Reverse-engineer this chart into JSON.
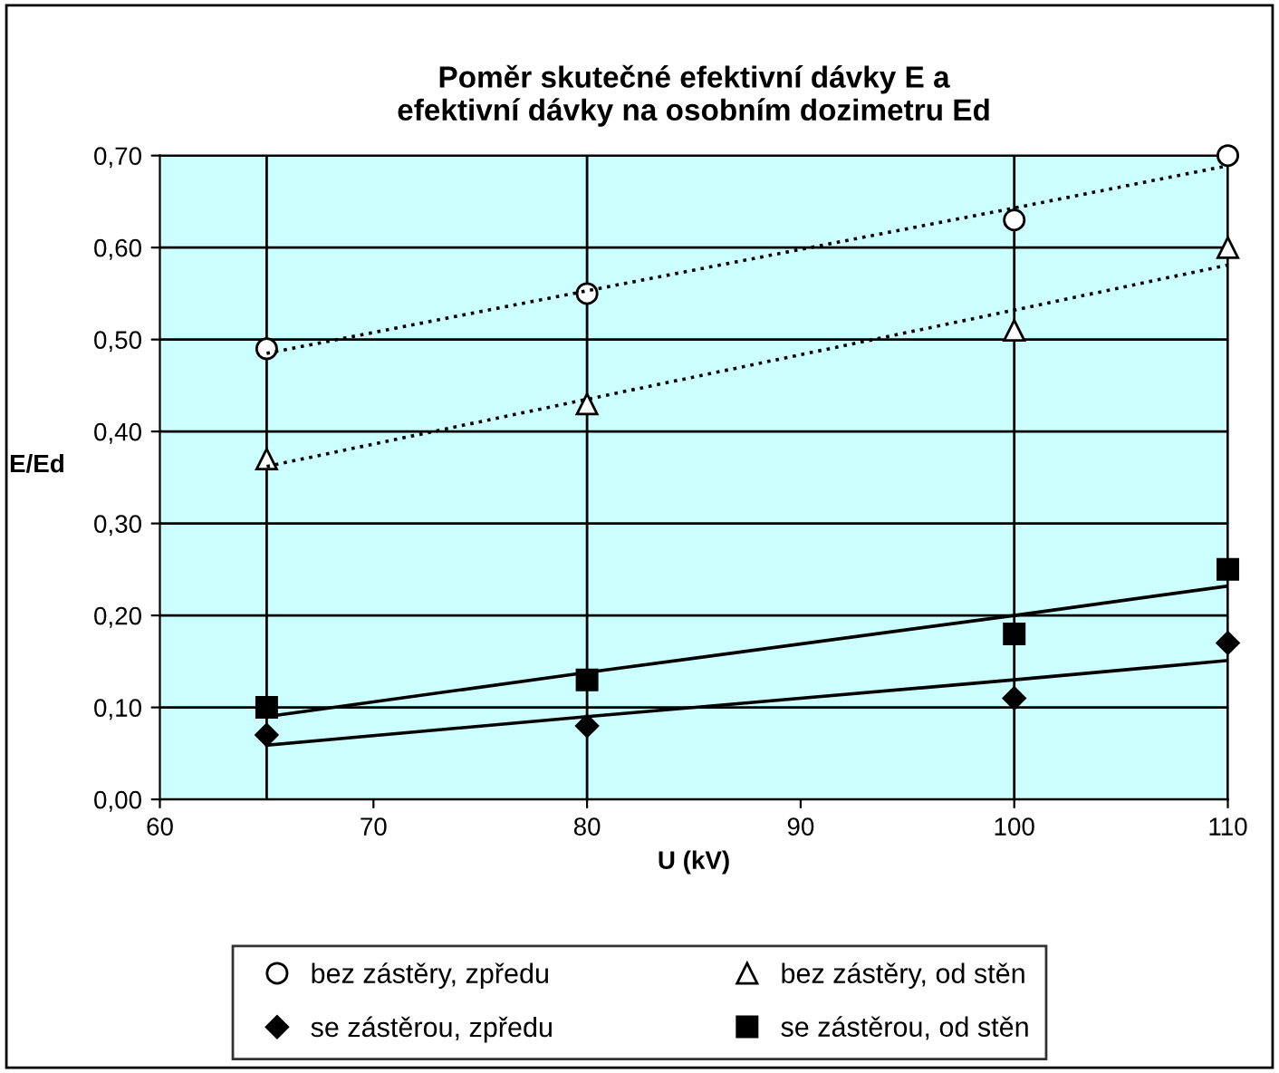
{
  "chart_data": {
    "type": "scatter",
    "title": "Poměr skutečné efektivní dávky E a\nefektivní dávky na osobním dozimetru Ed",
    "xlabel": "U (kV)",
    "ylabel": "E/Ed",
    "x": [
      65,
      80,
      100,
      110
    ],
    "series": [
      {
        "name": "bez zástěry, zpředu",
        "color": "#ffffff",
        "marker": "circle",
        "values": [
          0.49,
          0.55,
          0.63,
          0.7
        ]
      },
      {
        "name": "bez zástěry, od stěn",
        "color": "#ffffff",
        "marker": "triangle",
        "values": [
          0.37,
          0.43,
          0.51,
          0.6
        ]
      },
      {
        "name": "se zástěrou, zpředu",
        "color": "#000000",
        "marker": "diamond",
        "values": [
          0.07,
          0.08,
          0.11,
          0.17
        ]
      },
      {
        "name": "se zástěrou, od stěn",
        "color": "#000000",
        "marker": "square",
        "values": [
          0.1,
          0.13,
          0.18,
          0.25
        ]
      },
      {
        "type": "line",
        "color": "#000000",
        "line_style": "dotted",
        "values": [
          0.485,
          0.553,
          0.643,
          0.689
        ]
      },
      {
        "type": "line",
        "color": "#000000",
        "line_style": "dotted",
        "values": [
          0.362,
          0.435,
          0.532,
          0.581
        ]
      },
      {
        "type": "line",
        "color": "#000000",
        "line_style": "solid",
        "values": [
          0.059,
          0.09,
          0.13,
          0.151
        ]
      },
      {
        "type": "line",
        "color": "#000000",
        "line_style": "solid",
        "values": [
          0.09,
          0.138,
          0.2,
          0.232
        ]
      }
    ],
    "xlim": [
      60,
      110
    ],
    "xticks": [
      60,
      70,
      80,
      90,
      100,
      110
    ],
    "ylim": [
      0,
      0.7
    ],
    "yticks": [
      {
        "value": 0,
        "label": "0,00"
      },
      {
        "value": 0.1,
        "label": "0,10"
      },
      {
        "value": 0.2,
        "label": "0,20"
      },
      {
        "value": 0.3,
        "label": "0,30"
      },
      {
        "value": 0.4,
        "label": "0,40"
      },
      {
        "value": 0.5,
        "label": "0,50"
      },
      {
        "value": 0.6,
        "label": "0,60"
      },
      {
        "value": 0.7,
        "label": "0,70"
      }
    ],
    "ref_lines": [
      {
        "axis": "x",
        "value": 65,
        "label": null
      },
      {
        "axis": "x",
        "value": 80,
        "label": null
      },
      {
        "axis": "x",
        "value": 100,
        "label": null
      },
      {
        "axis": "x",
        "value": 110,
        "label": null
      }
    ],
    "grid": "y",
    "legend": "bottom"
  }
}
